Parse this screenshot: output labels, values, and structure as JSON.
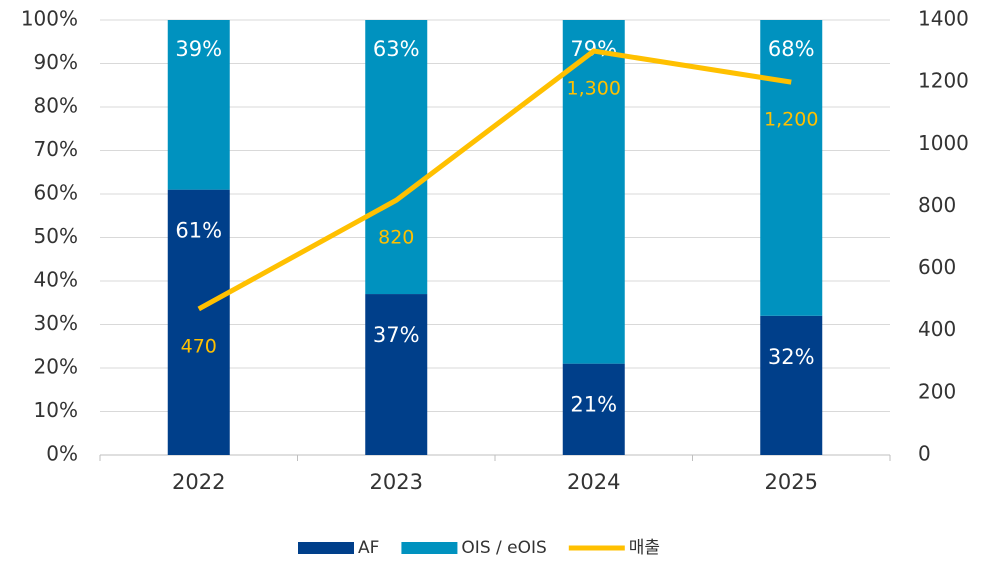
{
  "chart_data": {
    "type": "bar",
    "stacked": true,
    "categories": [
      "2022",
      "2023",
      "2024",
      "2025"
    ],
    "series": [
      {
        "name": "AF",
        "color": "#003f8a",
        "values": [
          61,
          37,
          21,
          32
        ],
        "value_labels": [
          "61%",
          "37%",
          "21%",
          "32%"
        ]
      },
      {
        "name": "OIS / eOIS",
        "color": "#0092bf",
        "values": [
          39,
          63,
          79,
          68
        ],
        "value_labels": [
          "39%",
          "63%",
          "79%",
          "68%"
        ]
      },
      {
        "name": "매출",
        "type": "line",
        "axis": "y2",
        "color": "#ffc000",
        "values": [
          470,
          820,
          1300,
          1200
        ],
        "value_labels": [
          "470",
          "820",
          "1,300",
          "1,200"
        ]
      }
    ],
    "ylim": [
      0,
      100
    ],
    "yticks": [
      {
        "value": 0,
        "label": "0%"
      },
      {
        "value": 10,
        "label": "10%"
      },
      {
        "value": 20,
        "label": "20%"
      },
      {
        "value": 30,
        "label": "30%"
      },
      {
        "value": 40,
        "label": "40%"
      },
      {
        "value": 50,
        "label": "50%"
      },
      {
        "value": 60,
        "label": "60%"
      },
      {
        "value": 70,
        "label": "70%"
      },
      {
        "value": 80,
        "label": "80%"
      },
      {
        "value": 90,
        "label": "90%"
      },
      {
        "value": 100,
        "label": "100%"
      }
    ],
    "y2lim": [
      0,
      1400
    ],
    "y2ticks": [
      0,
      200,
      400,
      600,
      800,
      1000,
      1200,
      1400
    ],
    "grid": true,
    "legend": "bottom"
  }
}
